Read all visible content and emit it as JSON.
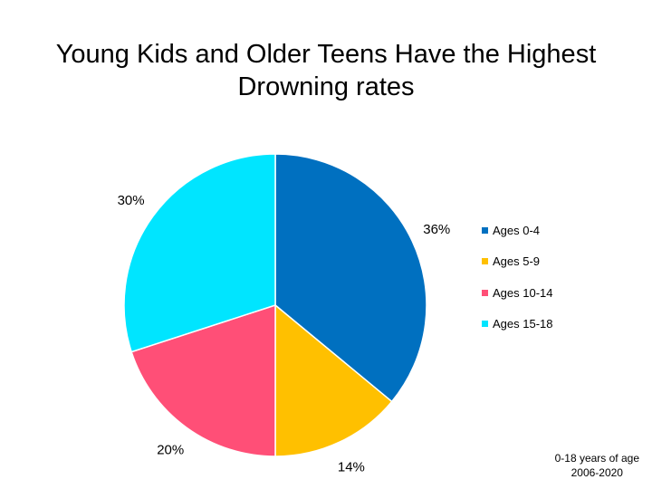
{
  "chart_data": {
    "type": "pie",
    "title": "Young Kids and Older Teens Have the Highest Drowning rates",
    "categories": [
      "Ages 0-4",
      "Ages 5-9",
      "Ages 10-14",
      "Ages 15-18"
    ],
    "values": [
      36,
      14,
      20,
      30
    ],
    "data_labels": [
      "36%",
      "14%",
      "20%",
      "30%"
    ],
    "colors": [
      "#0070C0",
      "#FFC000",
      "#FF4F77",
      "#00E5FF"
    ],
    "legend": {
      "position": "right"
    },
    "start_angle": "12 o'clock",
    "direction": "clockwise"
  },
  "footnote": {
    "line1": "0-18 years of age",
    "line2": "2006-2020"
  }
}
